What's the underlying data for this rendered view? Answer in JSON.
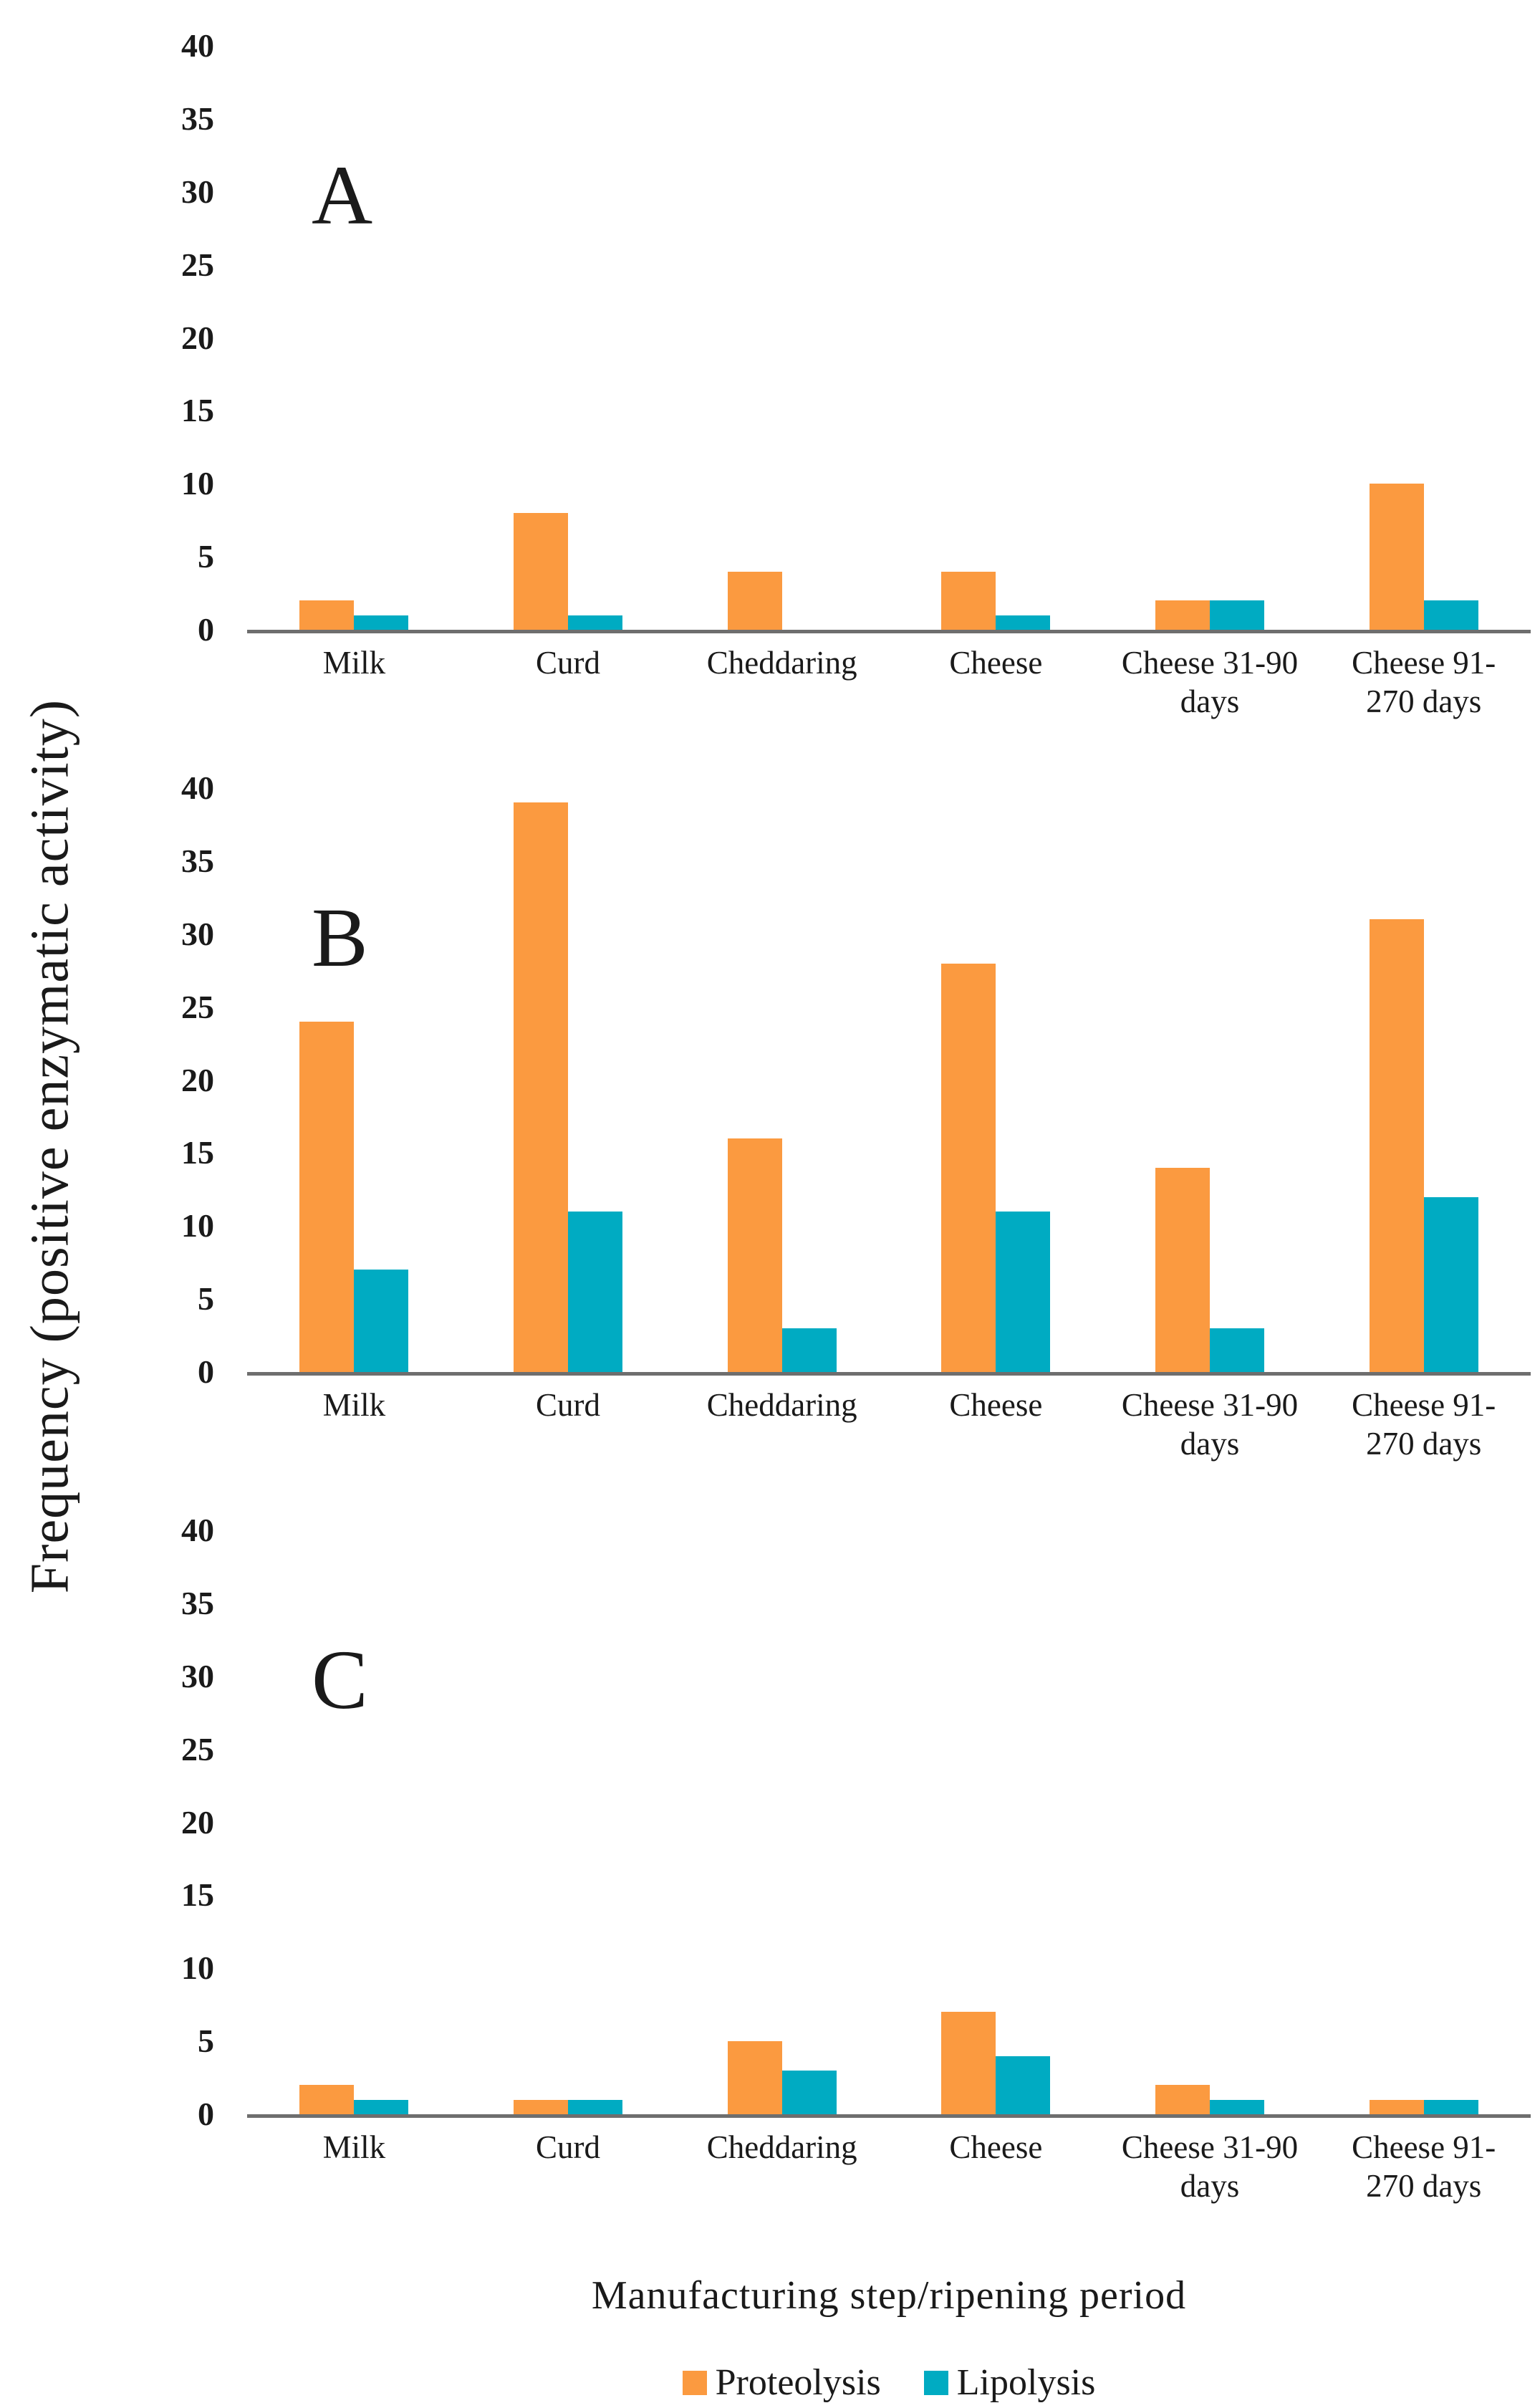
{
  "figure": {
    "y_axis_title": "Frequency (positive enzymatic activity)",
    "x_axis_title": "Manufacturing  step/ripening  period"
  },
  "legend": {
    "position": "bottom",
    "items": [
      {
        "label": "Proteolysis",
        "color": "#FB9A40"
      },
      {
        "label": "Lipolysis",
        "color": "#00ABC2"
      }
    ]
  },
  "axis": {
    "ymin": 0,
    "ymax": 40,
    "yticks": [
      0,
      5,
      10,
      15,
      20,
      25,
      30,
      35,
      40
    ],
    "baseline_color": "#6e6e6e",
    "grid": false
  },
  "categories_display": [
    "Milk",
    "Curd",
    "Cheddaring",
    "Cheese",
    "Cheese 31-90\ndays",
    "Cheese 91-\n270 days"
  ],
  "chart_data": [
    {
      "type": "bar",
      "panel": "A",
      "title": "",
      "xlabel": "Manufacturing step/ripening period",
      "ylabel": "Frequency (positive enzymatic activity)",
      "ylim": [
        0,
        40
      ],
      "grid": false,
      "legend_position": "bottom",
      "categories": [
        "Milk",
        "Curd",
        "Cheddaring",
        "Cheese",
        "Cheese 31-90 days",
        "Cheese 91-270 days"
      ],
      "series": [
        {
          "name": "Proteolysis",
          "values": [
            2,
            8,
            4,
            4,
            2,
            10
          ]
        },
        {
          "name": "Lipolysis",
          "values": [
            1,
            1,
            0,
            1,
            2,
            2
          ]
        }
      ]
    },
    {
      "type": "bar",
      "panel": "B",
      "title": "",
      "xlabel": "Manufacturing step/ripening period",
      "ylabel": "Frequency (positive enzymatic activity)",
      "ylim": [
        0,
        40
      ],
      "grid": false,
      "legend_position": "bottom",
      "categories": [
        "Milk",
        "Curd",
        "Cheddaring",
        "Cheese",
        "Cheese 31-90 days",
        "Cheese 91-270 days"
      ],
      "series": [
        {
          "name": "Proteolysis",
          "values": [
            24,
            39,
            16,
            28,
            14,
            31
          ]
        },
        {
          "name": "Lipolysis",
          "values": [
            7,
            11,
            3,
            11,
            3,
            12
          ]
        }
      ]
    },
    {
      "type": "bar",
      "panel": "C",
      "title": "",
      "xlabel": "Manufacturing step/ripening period",
      "ylabel": "Frequency (positive enzymatic activity)",
      "ylim": [
        0,
        40
      ],
      "grid": false,
      "legend_position": "bottom",
      "categories": [
        "Milk",
        "Curd",
        "Cheddaring",
        "Cheese",
        "Cheese 31-90 days",
        "Cheese 91-270 days"
      ],
      "series": [
        {
          "name": "Proteolysis",
          "values": [
            2,
            1,
            5,
            7,
            2,
            1
          ]
        },
        {
          "name": "Lipolysis",
          "values": [
            1,
            1,
            3,
            4,
            1,
            1
          ]
        }
      ]
    }
  ]
}
